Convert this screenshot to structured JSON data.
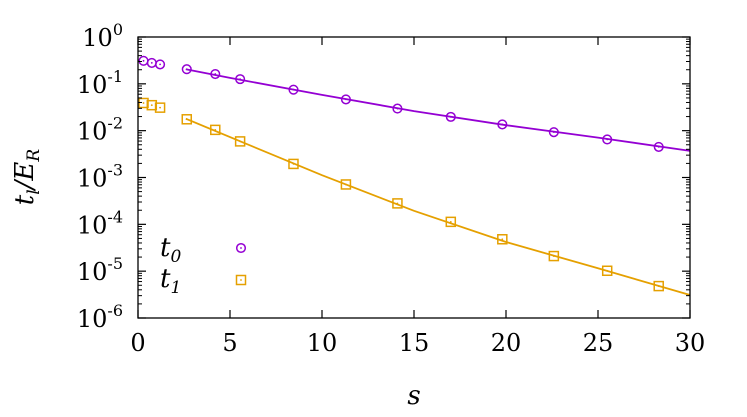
{
  "chart_data": {
    "type": "scatter",
    "xlabel": "s",
    "ylabel_main": "t",
    "ylabel_sub": "l",
    "ylabel_den": "E",
    "ylabel_den_sub": "R",
    "xlim": [
      0,
      30
    ],
    "ylim": [
      1e-06,
      1
    ],
    "yscale": "log",
    "legend_position": "lower-left",
    "x_ticks": [
      "0",
      "5",
      "10",
      "15",
      "20",
      "25",
      "30"
    ],
    "y_ticks": [
      {
        "base": "10",
        "exp": "0"
      },
      {
        "base": "10",
        "exp": "-1"
      },
      {
        "base": "10",
        "exp": "-2"
      },
      {
        "base": "10",
        "exp": "-3"
      },
      {
        "base": "10",
        "exp": "-4"
      },
      {
        "base": "10",
        "exp": "-5"
      },
      {
        "base": "10",
        "exp": "-6"
      }
    ],
    "series": [
      {
        "name_main": "t",
        "name_sub": "0",
        "marker": "circle",
        "color": "#9400d3",
        "points": [
          [
            0.3,
            0.31
          ],
          [
            0.75,
            0.28
          ],
          [
            1.2,
            0.26
          ],
          [
            2.65,
            0.205
          ],
          [
            4.2,
            0.162
          ],
          [
            5.55,
            0.126
          ],
          [
            8.45,
            0.075
          ],
          [
            11.3,
            0.0465
          ],
          [
            14.1,
            0.0296
          ],
          [
            17.0,
            0.0197
          ],
          [
            19.8,
            0.0136
          ],
          [
            22.6,
            0.0093
          ],
          [
            25.5,
            0.0065
          ],
          [
            28.3,
            0.0045
          ]
        ],
        "fit": [
          [
            2.6,
            0.205
          ],
          [
            5,
            0.134
          ],
          [
            10,
            0.058
          ],
          [
            15,
            0.0262
          ],
          [
            20,
            0.0131
          ],
          [
            25,
            0.0071
          ],
          [
            30,
            0.0037
          ]
        ]
      },
      {
        "name_main": "t",
        "name_sub": "1",
        "marker": "square",
        "color": "#e5a000",
        "points": [
          [
            0.3,
            0.039
          ],
          [
            0.75,
            0.035
          ],
          [
            1.2,
            0.031
          ],
          [
            2.65,
            0.0175
          ],
          [
            4.2,
            0.0104
          ],
          [
            5.55,
            0.0059
          ],
          [
            8.45,
            0.00195
          ],
          [
            11.3,
            0.00071
          ],
          [
            14.1,
            0.00028
          ],
          [
            17.0,
            0.000113
          ],
          [
            19.8,
            4.8e-05
          ],
          [
            22.6,
            2.1e-05
          ],
          [
            25.5,
            1.02e-05
          ],
          [
            28.3,
            4.8e-06
          ]
        ],
        "fit": [
          [
            2.6,
            0.018
          ],
          [
            5,
            0.0073
          ],
          [
            10,
            0.00112
          ],
          [
            15,
            0.000195
          ],
          [
            20,
            4.2e-05
          ],
          [
            25,
            1.15e-05
          ],
          [
            30,
            3.1e-06
          ]
        ]
      }
    ]
  }
}
